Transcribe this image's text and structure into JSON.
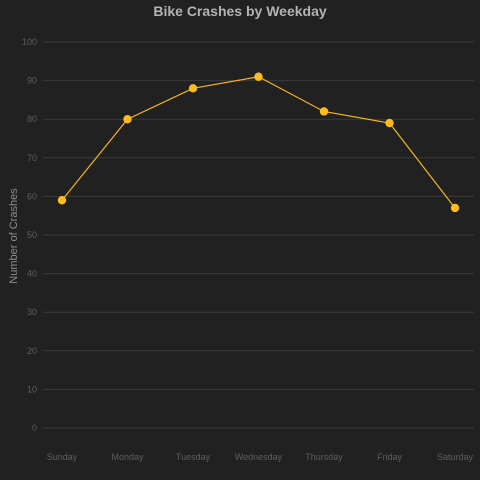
{
  "chart_data": {
    "type": "line",
    "title": "Bike Crashes by Weekday",
    "xlabel": "",
    "ylabel": "Number of Crashes",
    "categories": [
      "Sunday",
      "Monday",
      "Tuesday",
      "Wednesday",
      "Thursday",
      "Friday",
      "Saturday"
    ],
    "series": [
      {
        "values": [
          59,
          80,
          88,
          91,
          82,
          79,
          57
        ]
      }
    ],
    "ylim": [
      0,
      100
    ],
    "yticks": [
      0,
      10,
      20,
      30,
      40,
      50,
      60,
      70,
      80,
      90,
      100
    ],
    "grid": true,
    "colors": {
      "background": "#212121",
      "grid": "#3a3a3a",
      "line": "#f5b41e",
      "marker": "#fbbc1c"
    }
  }
}
